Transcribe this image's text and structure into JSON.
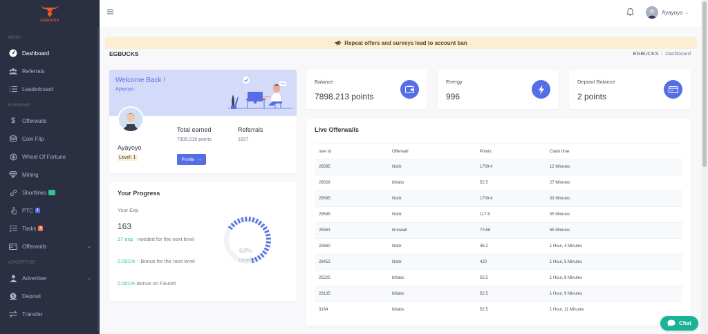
{
  "brand": {
    "logo_text": "EGBUCKS",
    "color": "#e85a2a"
  },
  "sidebar": {
    "sections": {
      "menu": "MENU",
      "earning": "EARNING",
      "advertise": "ADVERTISE"
    },
    "items": {
      "dashboard": "Dashboard",
      "referrals": "Referrals",
      "leaderboard": "Leaderboard",
      "offerwalls": "Offerwalls",
      "coin_flip": "Coin Flip",
      "wheel": "Wheel Of Fortune",
      "mining": "Mining",
      "shortlinks": "Shortlinks",
      "shortlinks_badge": "13",
      "ptc": "PTC",
      "ptc_badge": "1",
      "tasks": "Tasks",
      "tasks_badge": "0",
      "offerwalls2": "Offerwalls",
      "advertiser": "Advertiser",
      "deposit": "Deposit",
      "transfer": "Transfer"
    }
  },
  "topbar": {
    "username": "Ayayoyo"
  },
  "notice": "Repeat offers and surveys lead to account ban",
  "page": {
    "title": "EGBUCKS",
    "breadcrumb": [
      "EGBUCKS",
      "Dashboard"
    ]
  },
  "welcome": {
    "title": "Welcome Back !",
    "subtitle": "Ayayoyo",
    "name": "Ayayoyo",
    "level": "Level: 1",
    "total_earned_label": "Total earned",
    "total_earned_value": "7900.216 points",
    "referrals_label": "Referrals",
    "referrals_value": "1837",
    "profile_button": "Profile"
  },
  "progress": {
    "title": "Your Progress",
    "exp_label": "Your Exp",
    "exp_value": "163",
    "needed_value": "37 exp",
    "needed_text": "needed for the next level",
    "bonus_next_value": "0.001%",
    "bonus_next_text": "Bonus for the next level",
    "bonus_faucet_value": "0.001%",
    "bonus_faucet_text": "Bonus on Faucet",
    "gauge_percent": 63,
    "gauge_label": "63%",
    "gauge_level": "Level 2"
  },
  "stats": {
    "balance": {
      "label": "Balance",
      "value": "7898.213 points"
    },
    "energy": {
      "label": "Energy",
      "value": "996"
    },
    "deposit": {
      "label": "Deposit Balance",
      "value": "2 points"
    }
  },
  "offerwalls": {
    "title": "Live Offerwalls",
    "columns": [
      "user id",
      "Offerwall",
      "Points",
      "Claim time"
    ],
    "rows": [
      [
        "29595",
        "Notik",
        "1709.4",
        "12 Minutes"
      ],
      [
        "29028",
        "bitlabs",
        "52.5",
        "27 Minutes"
      ],
      [
        "29595",
        "Notik",
        "1709.4",
        "39 Minutes"
      ],
      [
        "29595",
        "Notik",
        "117.6",
        "55 Minutes"
      ],
      [
        "28363",
        "timewall",
        "70.68",
        "55 Minutes"
      ],
      [
        "22660",
        "Notik",
        "46.2",
        "1 Hour, 4 Minutes"
      ],
      [
        "28452",
        "Notik",
        "420",
        "1 Hour, 5 Minutes"
      ],
      [
        "25225",
        "bitlabs",
        "52.5",
        "1 Hour, 8 Minutes"
      ],
      [
        "28135",
        "bitlabs",
        "52.5",
        "1 Hour, 9 Minutes"
      ],
      [
        "3164",
        "bitlabs",
        "52.5",
        "1 Hour, 11 Minutes"
      ]
    ]
  },
  "chat": {
    "label": "Chat"
  },
  "colors": {
    "primary": "#556ee6",
    "success": "#34c38f",
    "sidebar": "#2a3042",
    "chat": "#1ab394"
  }
}
